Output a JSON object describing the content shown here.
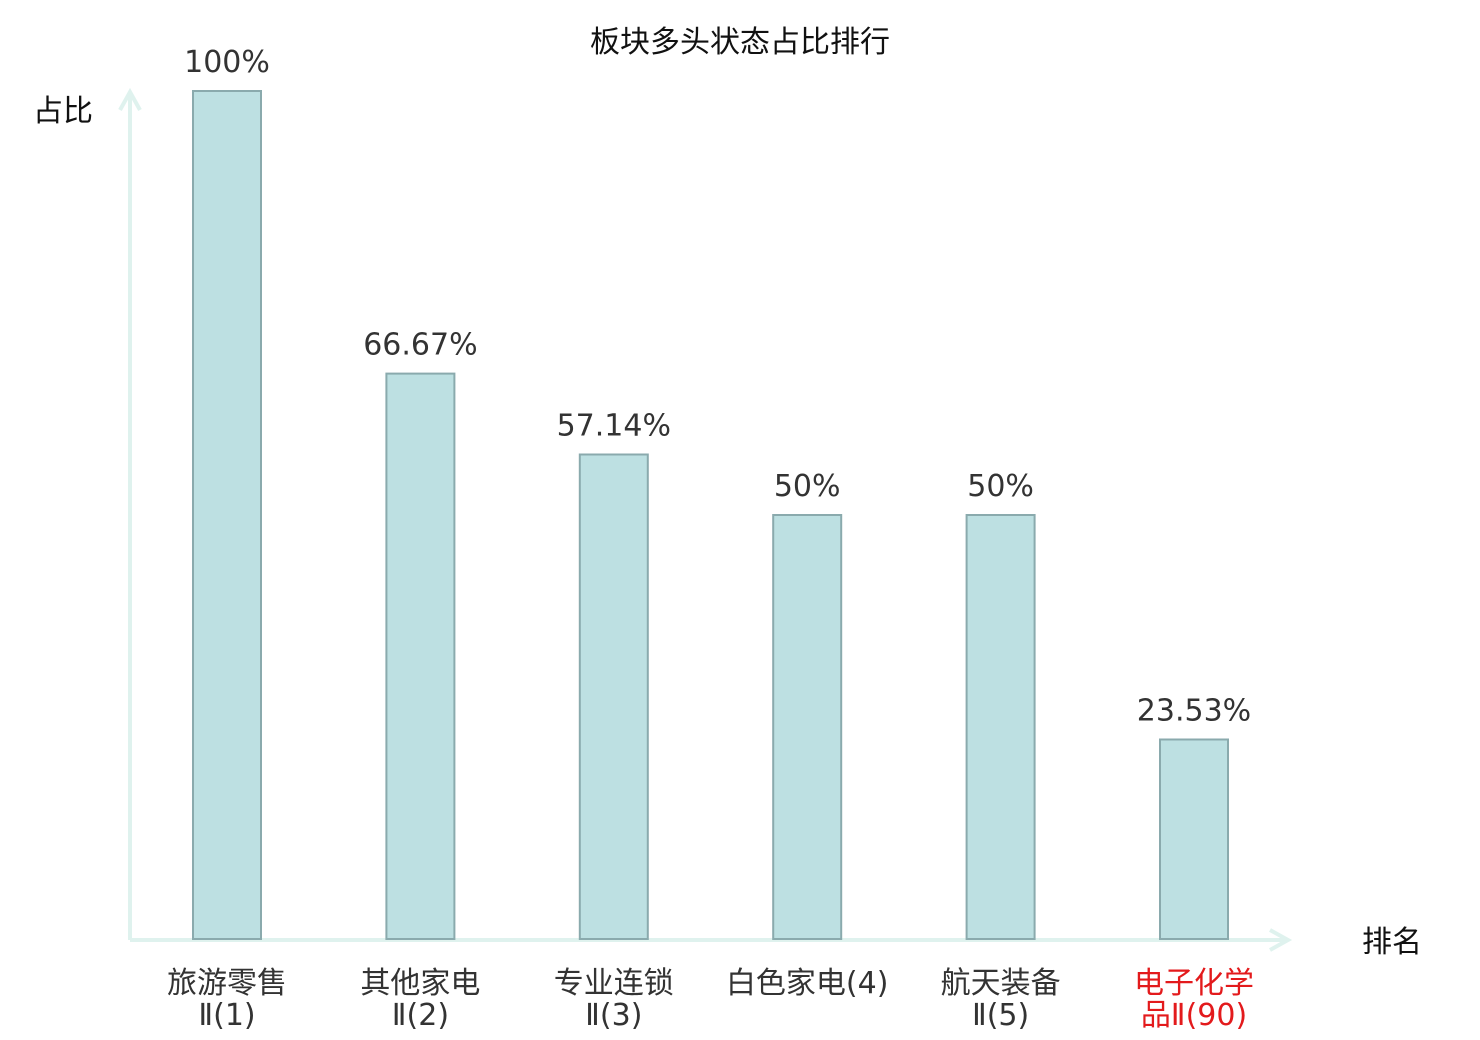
{
  "chart_data": {
    "type": "bar",
    "title": "板块多头状态占比排行",
    "ylabel": "占比",
    "xlabel": "排名",
    "ylim": [
      0,
      100
    ],
    "grid": false,
    "categories": [
      [
        "旅游零售",
        "Ⅱ(1)"
      ],
      [
        "其他家电",
        "Ⅱ(2)"
      ],
      [
        "专业连锁",
        "Ⅱ(3)"
      ],
      [
        "白色家电(4)"
      ],
      [
        "航天装备",
        "Ⅱ(5)"
      ],
      [
        "电子化学",
        "品Ⅱ(90)"
      ]
    ],
    "values": [
      100,
      66.67,
      57.14,
      50,
      50,
      23.53
    ],
    "value_labels": [
      "100%",
      "66.67%",
      "57.14%",
      "50%",
      "50%",
      "23.53%"
    ],
    "highlight_index": 5,
    "colors": {
      "bar_fill": "#bde0e2",
      "bar_stroke": "#8aaaad",
      "axis": "#dff2ee",
      "label": "#333333",
      "highlight_label": "#e31a1c"
    }
  }
}
